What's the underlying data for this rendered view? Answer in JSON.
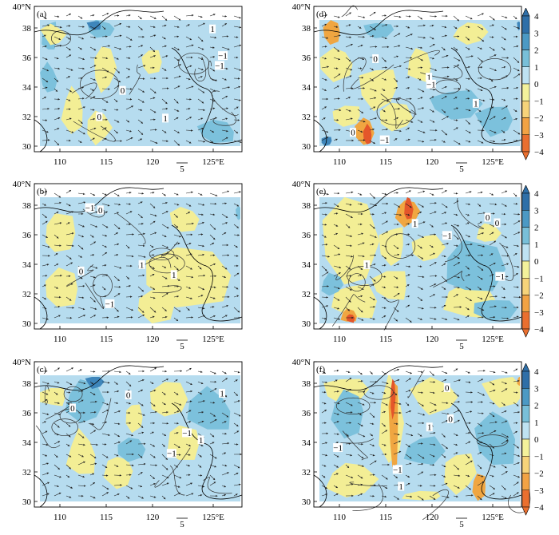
{
  "figure": {
    "panels": [
      {
        "id": "a",
        "label": "(a)",
        "column": "left",
        "row": 0
      },
      {
        "id": "b",
        "label": "(b)",
        "column": "left",
        "row": 1
      },
      {
        "id": "c",
        "label": "(c)",
        "column": "left",
        "row": 2
      },
      {
        "id": "d",
        "label": "(d)",
        "column": "right",
        "row": 0
      },
      {
        "id": "e",
        "label": "(e)",
        "column": "right",
        "row": 1
      },
      {
        "id": "f",
        "label": "(f)",
        "column": "right",
        "row": 2
      }
    ],
    "y_ticks": [
      "30",
      "32",
      "34",
      "36",
      "38",
      "40°N"
    ],
    "x_ticks": [
      "110",
      "115",
      "120",
      "125°E"
    ],
    "vector_ref_label": "5",
    "contour_labels": [
      "0",
      "1",
      "−1"
    ],
    "colorbar": {
      "labels": [
        "4",
        "3",
        "2",
        "1",
        "0",
        "−1",
        "−2",
        "−3",
        "−4"
      ],
      "colors": [
        "#2f6fa8",
        "#4c99c4",
        "#79bfd8",
        "#bfe2f2",
        "#f4f19b",
        "#f7d37a",
        "#f2a244",
        "#ea6f2f"
      ]
    }
  },
  "colors": {
    "light_blue": "#b6dcef",
    "mid_blue": "#7cc1dc",
    "dark_blue": "#3e86bb",
    "yellow": "#f3ee95",
    "orange": "#f0a641",
    "red": "#e4562a"
  }
}
